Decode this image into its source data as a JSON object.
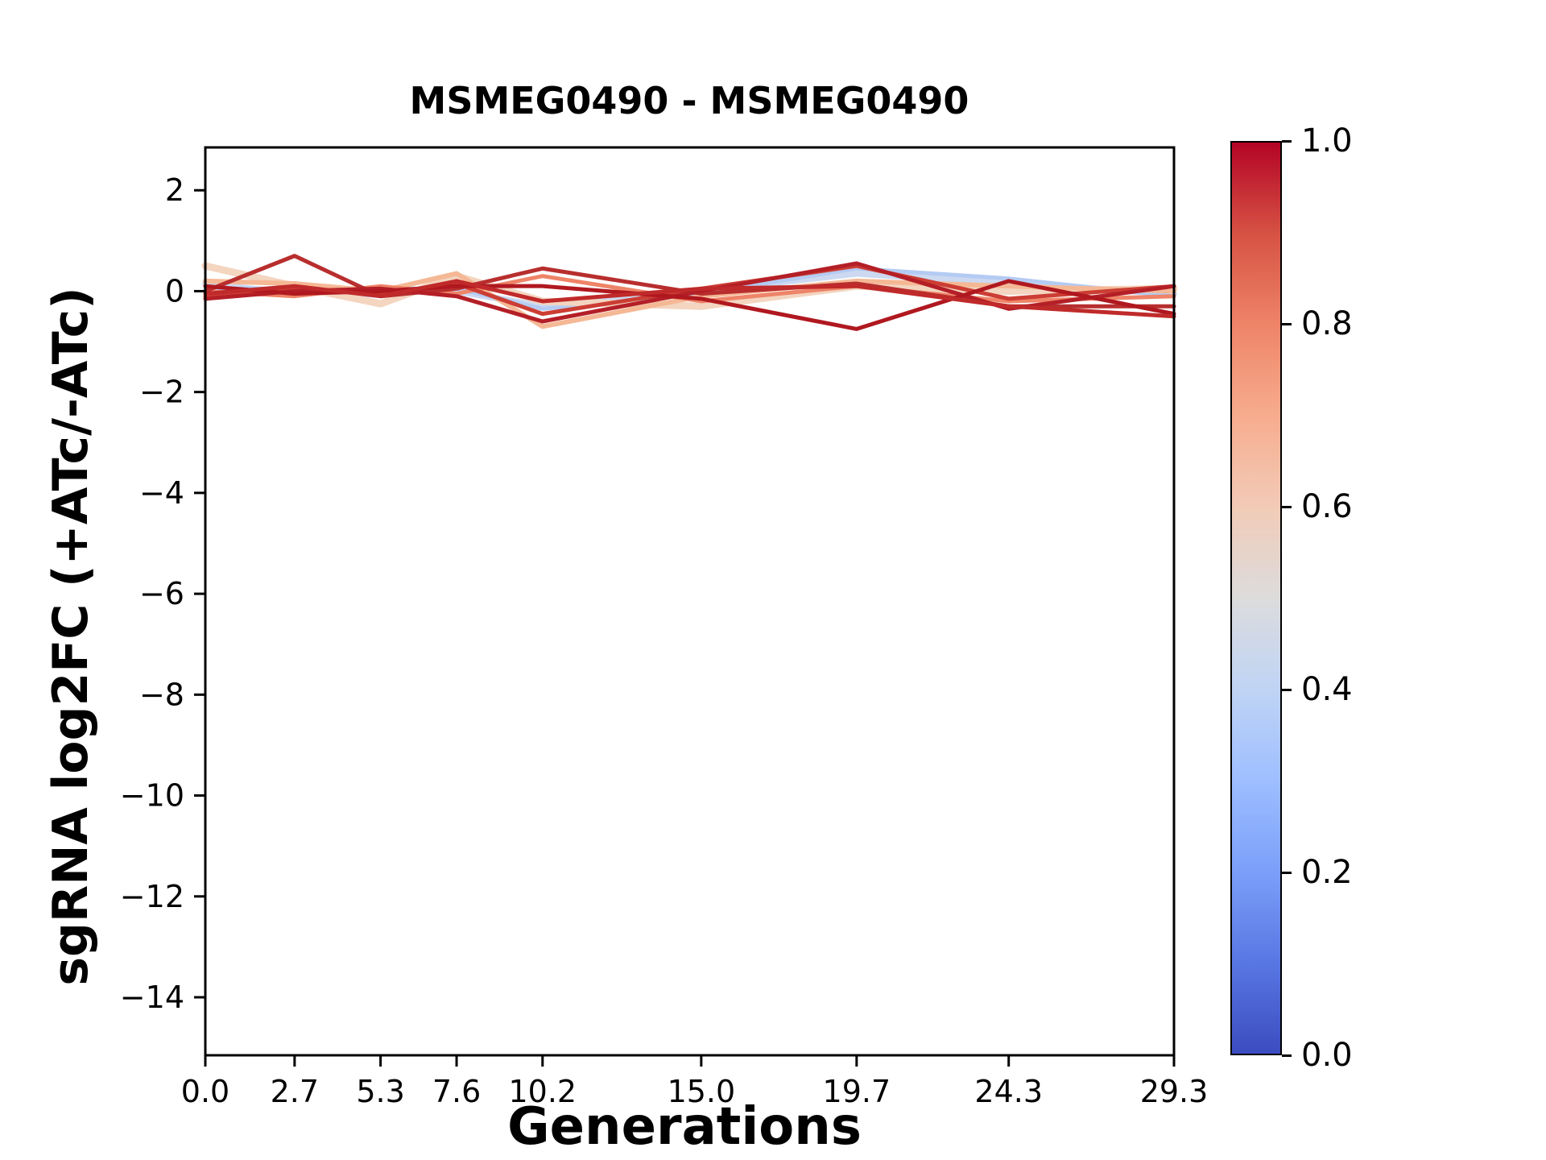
{
  "chart_data": {
    "type": "line",
    "title": "MSMEG0490 - MSMEG0490",
    "xlabel": "Generations",
    "ylabel": "sgRNA log2FC (+ATc/-ATc)",
    "x": [
      0.0,
      2.7,
      5.3,
      7.6,
      10.2,
      15.0,
      19.7,
      24.3,
      29.3
    ],
    "x_tick_labels": [
      "0.0",
      "2.7",
      "5.3",
      "7.6",
      "10.2",
      "15.0",
      "19.7",
      "24.3",
      "29.3"
    ],
    "y_ticks": [
      2,
      0,
      -2,
      -4,
      -6,
      -8,
      -10,
      -12,
      -14
    ],
    "y_tick_labels": [
      "2",
      "0",
      "−2",
      "−4",
      "−6",
      "−8",
      "−10",
      "−12",
      "−14"
    ],
    "xlim": [
      0.0,
      29.3
    ],
    "ylim": [
      -15.15,
      2.85
    ],
    "grid": false,
    "legend": "none",
    "series": [
      {
        "name": "sgrna-pale-blue-band",
        "colormap_value": 0.45,
        "color": "#ccd9f0",
        "linewidth": 8,
        "values": [
          0.15,
          -0.05,
          0.05,
          0.0,
          -0.3,
          0.0,
          0.35,
          0.15,
          -0.05
        ]
      },
      {
        "name": "sgrna-light-blue",
        "colormap_value": 0.4,
        "color": "#b4cbf3",
        "linewidth": 5,
        "values": [
          0.05,
          0.05,
          -0.1,
          0.05,
          -0.35,
          -0.05,
          0.45,
          0.25,
          -0.1
        ]
      },
      {
        "name": "sgrna-pale-peach-band",
        "colormap_value": 0.6,
        "color": "#f3d5c0",
        "linewidth": 9,
        "values": [
          0.5,
          0.1,
          -0.25,
          0.3,
          -0.2,
          -0.3,
          0.1,
          0.0,
          0.05
        ]
      },
      {
        "name": "sgrna-peach",
        "colormap_value": 0.68,
        "color": "#f5b895",
        "linewidth": 6,
        "values": [
          0.2,
          0.15,
          0.0,
          0.35,
          -0.7,
          -0.1,
          0.2,
          0.1,
          0.0
        ]
      },
      {
        "name": "sgrna-salmon",
        "colormap_value": 0.8,
        "color": "#ee8468",
        "linewidth": 5,
        "values": [
          0.0,
          -0.1,
          0.1,
          -0.05,
          0.3,
          -0.2,
          0.1,
          -0.2,
          -0.1
        ]
      },
      {
        "name": "sgrna-red-1",
        "colormap_value": 0.9,
        "color": "#cc3d33",
        "linewidth": 5,
        "values": [
          -0.1,
          0.05,
          -0.05,
          0.15,
          -0.45,
          0.05,
          0.5,
          -0.15,
          0.1
        ]
      },
      {
        "name": "sgrna-dark-red-1",
        "colormap_value": 0.95,
        "color": "#b82e2e",
        "linewidth": 5,
        "values": [
          0.0,
          0.7,
          -0.1,
          0.05,
          0.45,
          -0.05,
          0.15,
          -0.3,
          -0.3
        ]
      },
      {
        "name": "sgrna-dark-red-2",
        "colormap_value": 0.97,
        "color": "#b41f27",
        "linewidth": 5,
        "values": [
          -0.15,
          0.0,
          0.05,
          -0.1,
          -0.6,
          0.0,
          0.55,
          -0.35,
          0.1
        ]
      },
      {
        "name": "sgrna-dark-red-3",
        "colormap_value": 1.0,
        "color": "#b0181f",
        "linewidth": 5,
        "values": [
          0.1,
          -0.05,
          0.0,
          0.1,
          0.1,
          -0.15,
          -0.75,
          0.2,
          -0.45
        ]
      },
      {
        "name": "sgrna-dark-red-4",
        "colormap_value": 0.93,
        "color": "#c02a2a",
        "linewidth": 5,
        "values": [
          -0.05,
          0.1,
          -0.1,
          0.2,
          -0.2,
          0.05,
          0.1,
          -0.3,
          -0.5
        ]
      }
    ]
  },
  "colorbar": {
    "tick_labels": [
      "1.0",
      "0.8",
      "0.6",
      "0.4",
      "0.2",
      "0.0"
    ],
    "tick_values": [
      1.0,
      0.8,
      0.6,
      0.4,
      0.2,
      0.0
    ],
    "colormap_name": "coolwarm",
    "colormap_stops": [
      "#3B4CC0",
      "#5977E3",
      "#7B9FF9",
      "#9EBEFF",
      "#C0D4F5",
      "#DCDCDC",
      "#F2CBB7",
      "#F7AC8E",
      "#EE8468",
      "#D65244",
      "#B40426"
    ]
  },
  "colors": {
    "background": "#ffffff",
    "axes": "#000000",
    "text": "#000000"
  }
}
